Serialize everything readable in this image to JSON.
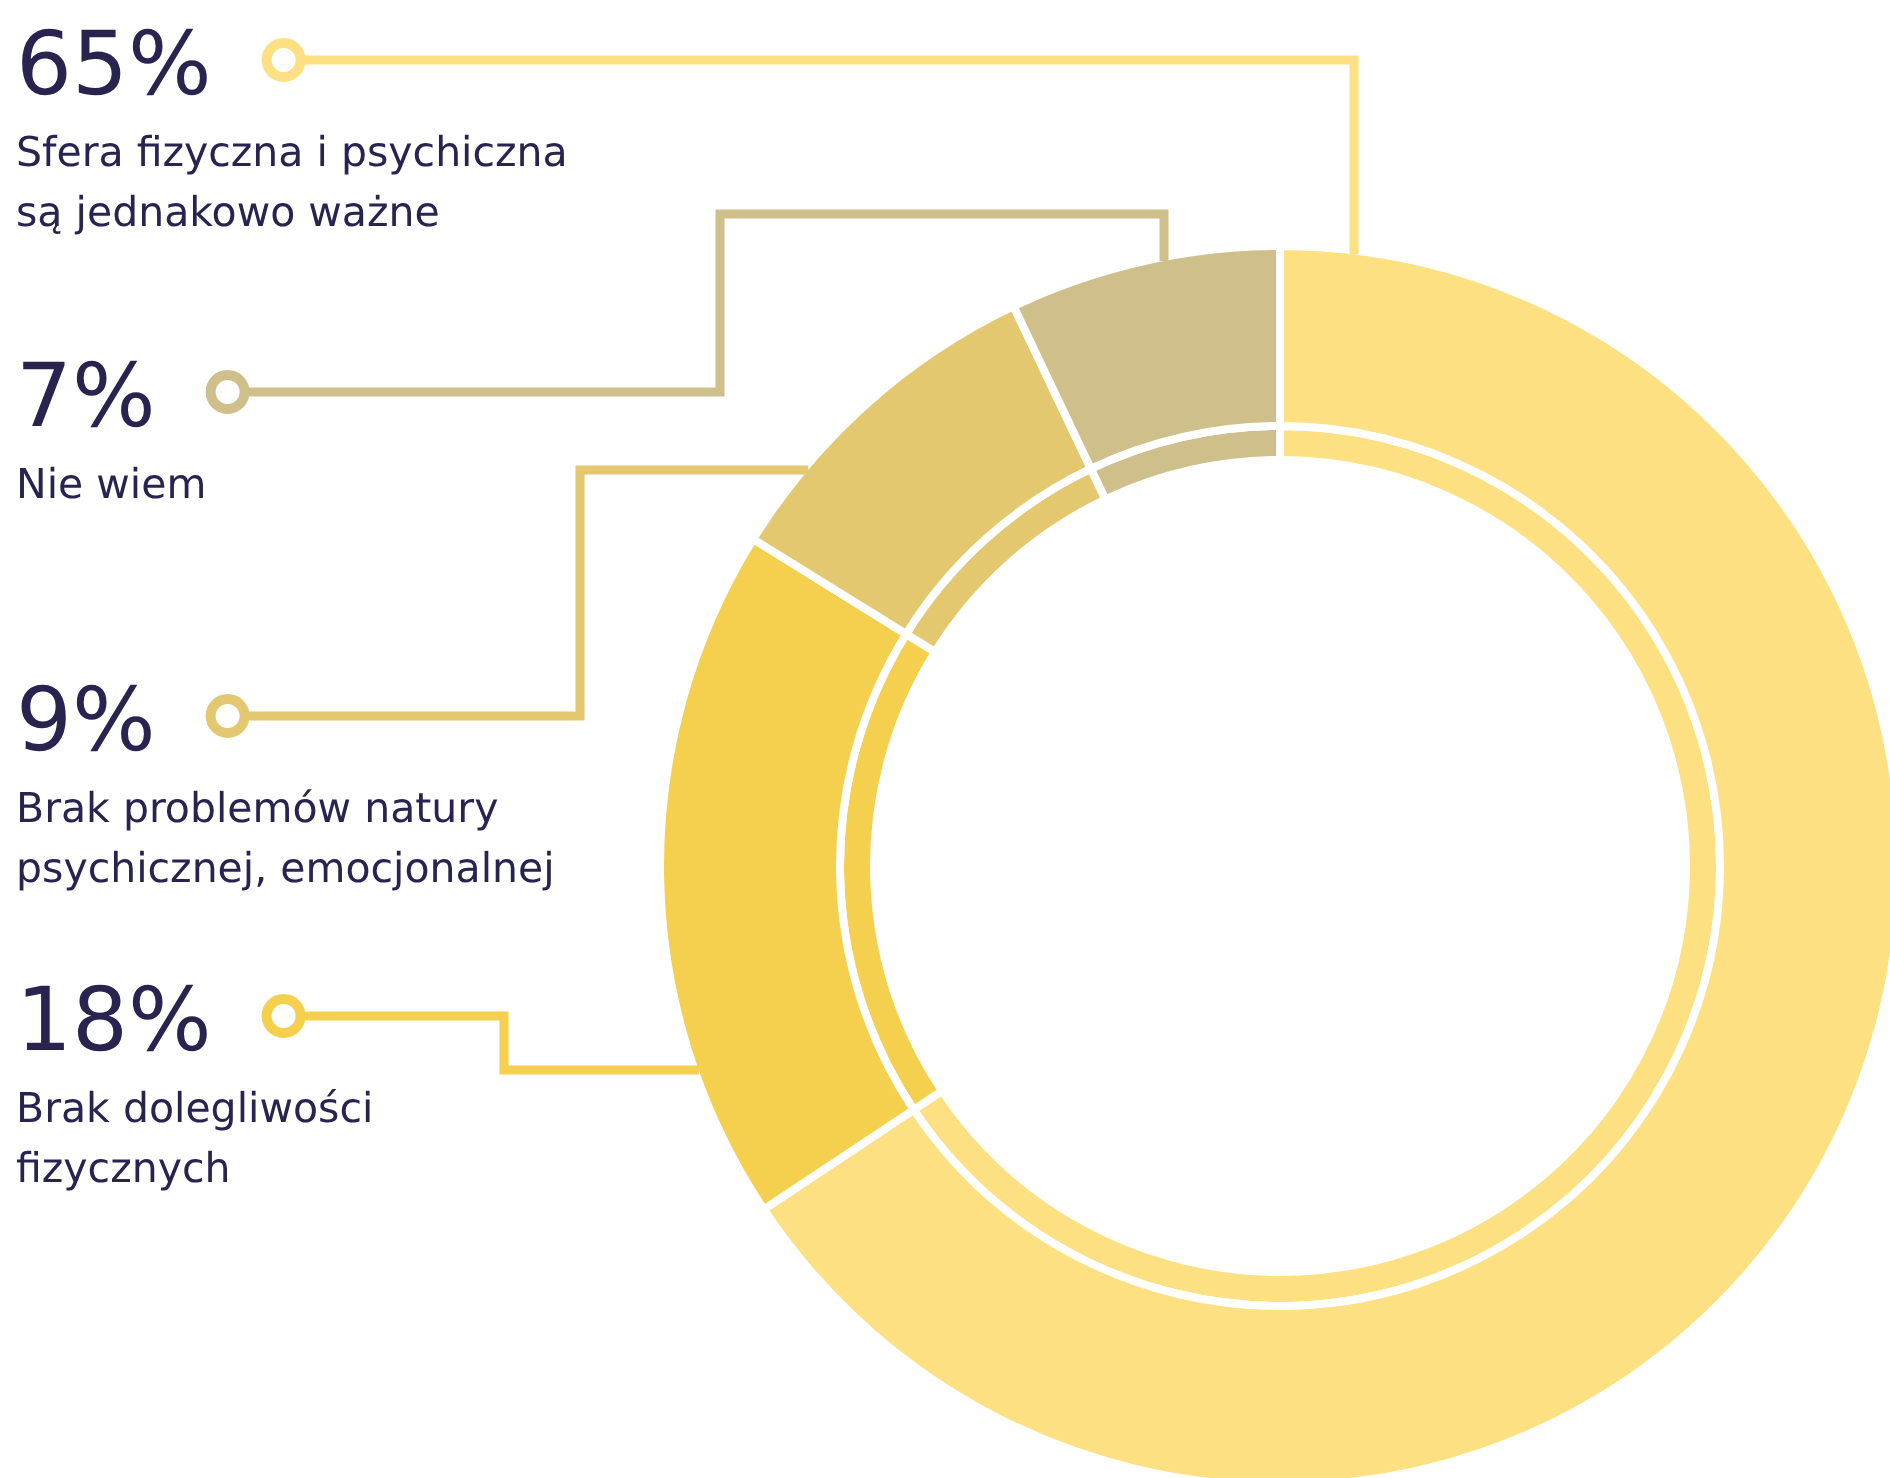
{
  "chart_data": {
    "type": "donut",
    "categories": [
      "Sfera fizyczna i psychiczna są jednakowo ważne",
      "Brak dolegliwości fizycznych",
      "Brak problemów natury psychicznej, emocjonalnej",
      "Nie wiem"
    ],
    "series": [
      {
        "values": [
          65,
          18,
          9,
          7
        ],
        "value_labels": [
          "65%",
          "18%",
          "9%",
          "7%"
        ]
      },
      {
        "values": [
          65,
          18,
          9,
          7
        ]
      }
    ],
    "colors": [
      "#fde082",
      "#f5cf4e",
      "#e3c870",
      "#cfbf8a"
    ]
  }
}
